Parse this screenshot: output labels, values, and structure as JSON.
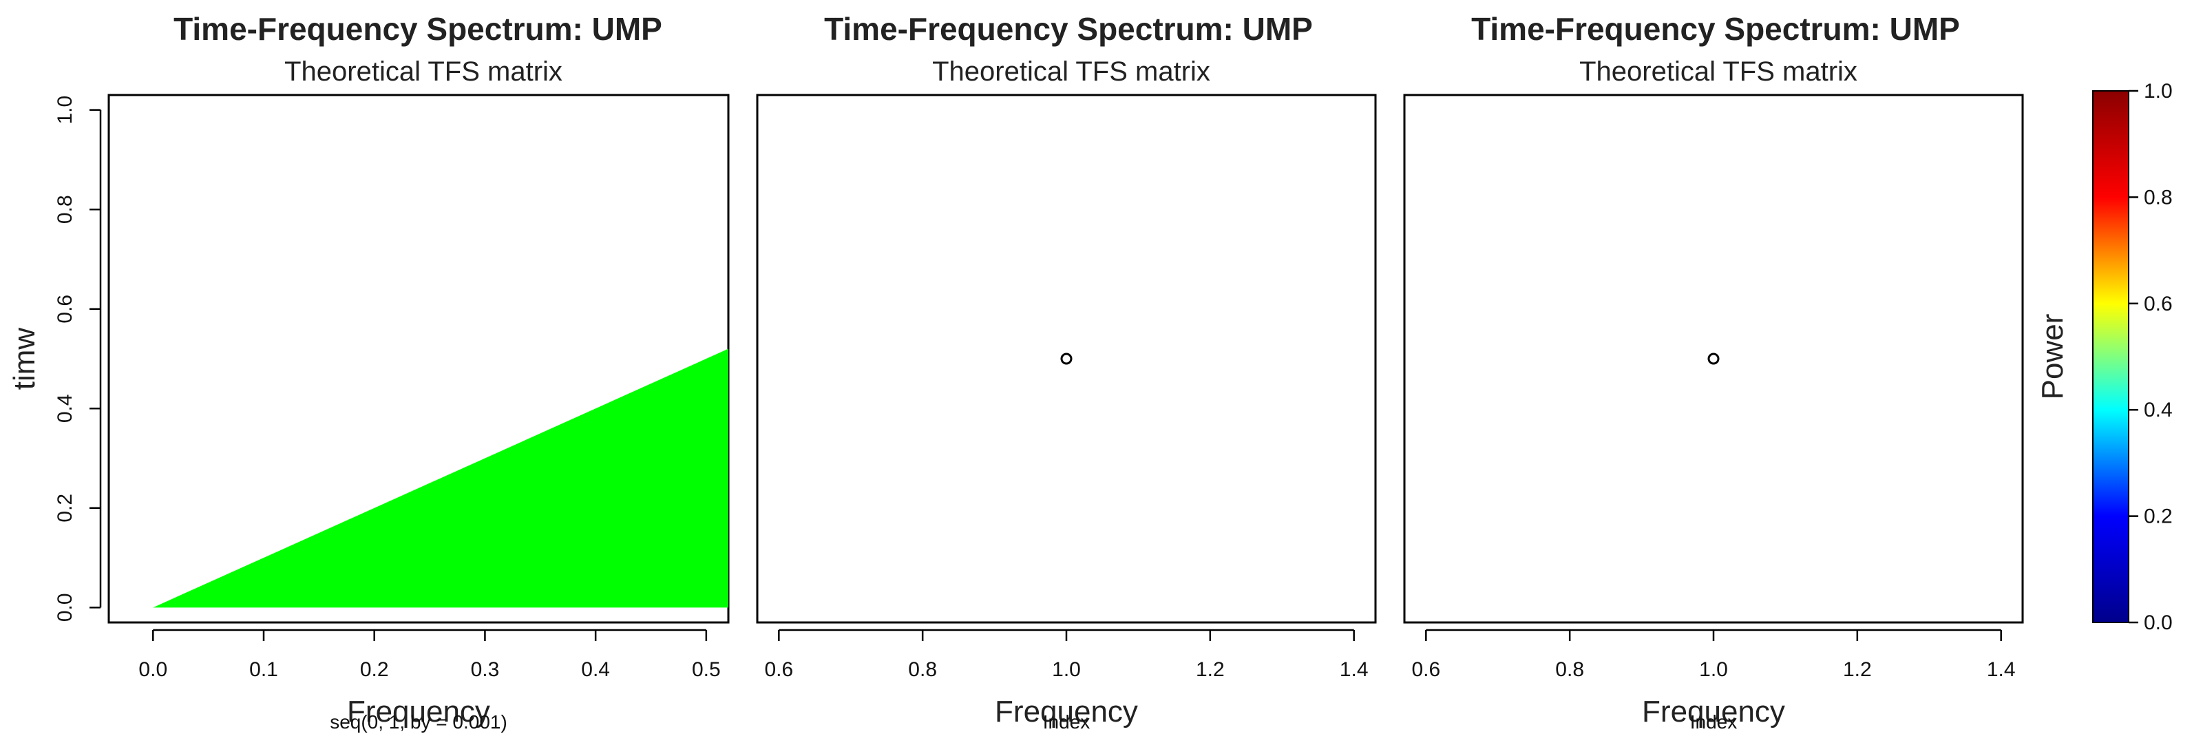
{
  "colors": {
    "fill_region": "#00ff00",
    "axis": "#000000",
    "colorbar_stops": [
      "#00008b",
      "#0000ff",
      "#00ffff",
      "#ffff00",
      "#ff0000",
      "#8b0000"
    ]
  },
  "chart_data": [
    {
      "type": "area",
      "title": "Time-Frequency Spectrum: UMP",
      "subtitle": "Theoretical TFS matrix",
      "xlabel": "Frequency",
      "x_sublabel": "seq(0, 1, by = 0.001)",
      "ylabel": "timw",
      "xlim": [
        -0.04,
        0.52
      ],
      "ylim": [
        -0.03,
        1.03
      ],
      "xticks": [
        "0.0",
        "0.1",
        "0.2",
        "0.3",
        "0.4",
        "0.5"
      ],
      "yticks": [
        "0.0",
        "0.2",
        "0.4",
        "0.6",
        "0.8",
        "1.0"
      ],
      "polygon": [
        [
          0.0,
          0.0
        ],
        [
          0.52,
          0.52
        ],
        [
          0.52,
          0.0
        ]
      ]
    },
    {
      "type": "scatter",
      "title": "Time-Frequency Spectrum: UMP",
      "subtitle": "Theoretical TFS matrix",
      "xlabel": "Frequency",
      "x_sublabel": "Index",
      "xlim": [
        0.57,
        1.43
      ],
      "ylim": [
        -0.03,
        1.03
      ],
      "xticks": [
        "0.6",
        "0.8",
        "1.0",
        "1.2",
        "1.4"
      ],
      "points": [
        [
          1.0,
          0.5
        ]
      ]
    },
    {
      "type": "scatter",
      "title": "Time-Frequency Spectrum: UMP",
      "subtitle": "Theoretical TFS matrix",
      "xlabel": "Frequency",
      "x_sublabel": "Index",
      "xlim": [
        0.57,
        1.43
      ],
      "ylim": [
        -0.03,
        1.03
      ],
      "xticks": [
        "0.6",
        "0.8",
        "1.0",
        "1.2",
        "1.4"
      ],
      "points": [
        [
          1.0,
          0.5
        ]
      ]
    }
  ],
  "colorbar": {
    "label": "Power",
    "range": [
      0,
      1
    ],
    "ticks": [
      "0.0",
      "0.2",
      "0.4",
      "0.6",
      "0.8",
      "1.0"
    ]
  }
}
